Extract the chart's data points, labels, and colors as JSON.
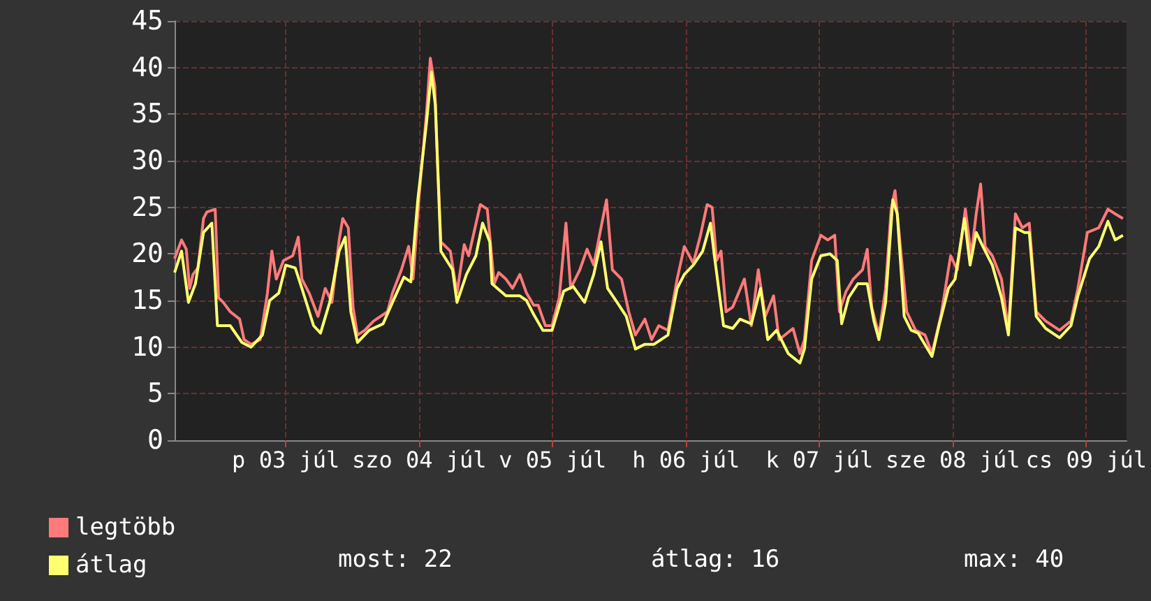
{
  "chart_data": {
    "type": "line",
    "xlim": [
      "--07-02T16:00",
      "--07-09T19:15"
    ],
    "xticks": [
      {
        "value": "--07-03T12:00",
        "label": "p 03 júl"
      },
      {
        "value": "--07-04T12:00",
        "label": "szo 04 júl"
      },
      {
        "value": "--07-05T12:00",
        "label": "v 05 júl"
      },
      {
        "value": "--07-06T12:00",
        "label": "h 06 júl"
      },
      {
        "value": "--07-07T12:00",
        "label": "k 07 júl"
      },
      {
        "value": "--07-08T12:00",
        "label": "sze 08 júl"
      },
      {
        "value": "--07-09T12:00",
        "label": "cs 09 júl"
      }
    ],
    "ylim": [
      0,
      45
    ],
    "yticks": [
      0,
      5,
      10,
      15,
      20,
      25,
      30,
      35,
      40,
      45
    ],
    "grid": true,
    "legend": "bottom left",
    "marker": "none",
    "line_style": "solid",
    "annotations": [
      "most: 22",
      "átlag: 16",
      "max: 40"
    ],
    "series": [
      {
        "name": "legtöbb",
        "color": "#ff7a7a",
        "x": [
          "--07-02T16:00",
          "--07-02T17:15",
          "--07-02T18:06",
          "--07-02T18:42",
          "--07-02T19:18",
          "--07-02T20:12",
          "--07-02T21:12",
          "--07-02T21:48",
          "--07-02T23:18",
          "--07-02T23:54",
          "--07-03T00:45",
          "--07-03T02:00",
          "--07-03T03:42",
          "--07-03T04:30",
          "--07-03T05:45",
          "--07-03T07:24",
          "--07-03T08:42",
          "--07-03T09:30",
          "--07-03T10:18",
          "--07-03T11:36",
          "--07-03T13:15",
          "--07-03T14:15",
          "--07-03T14:54",
          "--07-03T16:12",
          "--07-03T17:48",
          "--07-03T19:06",
          "--07-03T20:18",
          "--07-03T21:36",
          "--07-03T22:15",
          "--07-03T23:15",
          "--07-04T00:06",
          "--07-04T00:54",
          "--07-04T02:12",
          "--07-04T03:48",
          "--07-04T06:18",
          "--07-04T07:12",
          "--07-04T08:48",
          "--07-04T10:06",
          "--07-04T10:54",
          "--07-04T12:00",
          "--07-04T13:18",
          "--07-04T14:00",
          "--07-04T14:48",
          "--07-04T15:18",
          "--07-04T15:54",
          "--07-04T17:36",
          "--07-04T18:48",
          "--07-04T20:06",
          "--07-04T20:54",
          "--07-04T23:00",
          "--07-05T00:15",
          "--07-05T01:30",
          "--07-05T02:18",
          "--07-05T03:36",
          "--07-05T04:48",
          "--07-05T06:06",
          "--07-05T07:18",
          "--07-05T08:36",
          "--07-05T09:24",
          "--07-05T10:42",
          "--07-05T11:54",
          "--07-05T13:12",
          "--07-05T14:24",
          "--07-05T15:15",
          "--07-05T16:54",
          "--07-05T18:12",
          "--07-05T19:24",
          "--07-05T20:42",
          "--07-05T21:42",
          "--07-05T22:45",
          "--07-06T00:24",
          "--07-06T01:42",
          "--07-06T02:54",
          "--07-06T04:36",
          "--07-06T05:48",
          "--07-06T07:06",
          "--07-06T08:45",
          "--07-06T10:24",
          "--07-06T11:42",
          "--07-06T13:18",
          "--07-06T14:36",
          "--07-06T15:48",
          "--07-06T16:42",
          "--07-06T17:30",
          "--07-06T18:18",
          "--07-06T19:12",
          "--07-06T20:24",
          "--07-06T22:30",
          "--07-06T23:45",
          "--07-07T01:00",
          "--07-07T02:15",
          "--07-07T03:45",
          "--07-07T04:45",
          "--07-07T07:15",
          "--07-07T08:30",
          "--07-07T09:18",
          "--07-07T10:36",
          "--07-07T12:15",
          "--07-07T13:30",
          "--07-07T14:45",
          "--07-07T15:36",
          "--07-07T16:48",
          "--07-07T18:06",
          "--07-07T19:45",
          "--07-07T20:36",
          "--07-07T21:24",
          "--07-07T22:42",
          "--07-07T23:54",
          "--07-08T00:54",
          "--07-08T01:36",
          "--07-08T02:48",
          "--07-08T03:42",
          "--07-08T05:18",
          "--07-08T07:00",
          "--07-08T08:15",
          "--07-08T09:54",
          "--07-08T11:36",
          "--07-08T12:48",
          "--07-08T14:15",
          "--07-08T15:18",
          "--07-08T16:12",
          "--07-08T17:00",
          "--07-08T17:48",
          "--07-08T19:06",
          "--07-08T20:45",
          "--07-08T22:00",
          "--07-08T23:15",
          "--07-09T00:30",
          "--07-09T01:45",
          "--07-09T03:00",
          "--07-09T04:42",
          "--07-09T07:12",
          "--07-09T09:15",
          "--07-09T10:30",
          "--07-09T12:12",
          "--07-09T14:15",
          "--07-09T15:54",
          "--07-09T17:12",
          "--07-09T18:36"
        ],
        "values": [
          19.5,
          21.5,
          20.5,
          16.3,
          17.8,
          18.5,
          23.8,
          24.5,
          24.8,
          15.3,
          14.8,
          13.8,
          13,
          10.8,
          10.3,
          10.8,
          15.8,
          20.3,
          17.3,
          19.3,
          19.8,
          21.8,
          17.3,
          15.8,
          13.3,
          16.3,
          14.8,
          21.5,
          23.8,
          22.8,
          14.3,
          11.3,
          11.8,
          12.8,
          13.8,
          15.8,
          18.3,
          20.8,
          17.3,
          26.3,
          35,
          41,
          38,
          30,
          21.3,
          20.3,
          15.8,
          21,
          19.8,
          25.3,
          24.8,
          16.8,
          18,
          17.3,
          16.3,
          17.8,
          15.8,
          14.5,
          14.5,
          12.3,
          12.3,
          15.3,
          23.3,
          16.3,
          18.3,
          20.5,
          18.8,
          22.8,
          25.8,
          18.3,
          17.3,
          13.8,
          11.3,
          13,
          10.8,
          12.3,
          11.8,
          17.3,
          20.8,
          19,
          22,
          25.3,
          25,
          19.3,
          20.3,
          13.8,
          14.3,
          17.3,
          12.3,
          18.3,
          13.3,
          15.5,
          10.8,
          12,
          9.3,
          10.8,
          19.3,
          22,
          21.5,
          22,
          13.8,
          16,
          17.3,
          18.3,
          20.5,
          14.3,
          11.3,
          16.3,
          24.8,
          26.8,
          19.3,
          13.8,
          11.8,
          11.3,
          9.3,
          13.5,
          19.8,
          18.3,
          24.8,
          19.8,
          24.3,
          27.5,
          20.8,
          19.8,
          17.3,
          11.8,
          24.3,
          22.8,
          23.3,
          13.8,
          12.8,
          11.8,
          12.8,
          16.3,
          22.3,
          22.8,
          24.8,
          24.3,
          23.8
        ]
      },
      {
        "name": "átlag",
        "color": "#ffff70",
        "x": [
          "--07-02T16:00",
          "--07-02T17:15",
          "--07-02T18:30",
          "--07-02T19:45",
          "--07-02T21:12",
          "--07-02T22:42",
          "--07-02T23:42",
          "--07-03T02:00",
          "--07-03T04:06",
          "--07-03T05:45",
          "--07-03T07:48",
          "--07-03T09:06",
          "--07-03T10:45",
          "--07-03T12:00",
          "--07-03T13:42",
          "--07-03T14:54",
          "--07-03T17:00",
          "--07-03T18:15",
          "--07-03T19:54",
          "--07-03T21:36",
          "--07-03T22:42",
          "--07-03T23:42",
          "--07-04T00:54",
          "--07-04T03:00",
          "--07-04T05:30",
          "--07-04T07:12",
          "--07-04T09:15",
          "--07-04T10:30",
          "--07-04T11:45",
          "--07-04T13:18",
          "--07-04T14:12",
          "--07-04T14:54",
          "--07-04T15:54",
          "--07-04T18:00",
          "--07-04T18:48",
          "--07-04T20:30",
          "--07-04T22:12",
          "--07-04T23:24",
          "--07-05T00:42",
          "--07-05T01:06",
          "--07-05T03:36",
          "--07-05T06:06",
          "--07-05T07:18",
          "--07-05T08:36",
          "--07-05T10:15",
          "--07-05T11:54",
          "--07-05T14:00",
          "--07-05T15:42",
          "--07-05T17:45",
          "--07-05T19:24",
          "--07-05T20:42",
          "--07-05T21:54",
          "--07-05T23:36",
          "--07-06T01:15",
          "--07-06T02:54",
          "--07-06T04:36",
          "--07-06T06:15",
          "--07-06T08:45",
          "--07-06T10:24",
          "--07-06T11:42",
          "--07-06T13:18",
          "--07-06T15:00",
          "--07-06T16:24",
          "--07-06T17:06",
          "--07-06T18:45",
          "--07-06T20:24",
          "--07-06T21:42",
          "--07-06T23:45",
          "--07-07T01:24",
          "--07-07T02:42",
          "--07-07T04:18",
          "--07-07T06:24",
          "--07-07T08:30",
          "--07-07T09:18",
          "--07-07T10:36",
          "--07-07T12:15",
          "--07-07T13:54",
          "--07-07T15:12",
          "--07-07T16:00",
          "--07-07T17:15",
          "--07-07T18:54",
          "--07-07T20:36",
          "--07-07T21:48",
          "--07-07T22:42",
          "--07-07T23:54",
          "--07-08T01:12",
          "--07-08T02:00",
          "--07-08T03:15",
          "--07-08T04:30",
          "--07-08T05:45",
          "--07-08T08:15",
          "--07-08T09:30",
          "--07-08T11:12",
          "--07-08T12:24",
          "--07-08T14:06",
          "--07-08T15:06",
          "--07-08T16:12",
          "--07-08T17:24",
          "--07-08T19:06",
          "--07-08T20:45",
          "--07-08T22:00",
          "--07-08T23:15",
          "--07-09T00:54",
          "--07-09T01:45",
          "--07-09T03:00",
          "--07-09T04:42",
          "--07-09T07:12",
          "--07-09T09:15",
          "--07-09T10:30",
          "--07-09T12:36",
          "--07-09T14:15",
          "--07-09T15:54",
          "--07-09T17:12",
          "--07-09T18:36"
        ],
        "values": [
          18,
          20.3,
          14.8,
          16.8,
          22.3,
          23.3,
          12.3,
          12.3,
          10.5,
          10,
          11.3,
          15,
          15.8,
          18.8,
          18.5,
          16.3,
          12.3,
          11.5,
          14.8,
          20.3,
          21.8,
          13.8,
          10.5,
          11.8,
          12.5,
          14.8,
          17.5,
          17,
          25.8,
          34,
          39.5,
          36,
          20.3,
          18.3,
          14.8,
          17.8,
          19.8,
          23.3,
          21.3,
          16.8,
          15.5,
          15.5,
          15,
          13.5,
          11.8,
          11.8,
          16,
          16.5,
          14.8,
          17.8,
          21.3,
          16.3,
          14.8,
          13.3,
          9.8,
          10.3,
          10.3,
          11.3,
          16.3,
          17.8,
          18.8,
          20.3,
          23.3,
          19.8,
          12.3,
          12,
          13,
          12.5,
          16.3,
          10.8,
          11.8,
          9.3,
          8.3,
          9.8,
          17.3,
          19.8,
          20,
          19.3,
          12.5,
          15.3,
          16.8,
          16.8,
          12.8,
          10.8,
          14.8,
          25.8,
          24.3,
          13.3,
          11.8,
          11.5,
          9,
          12.3,
          16.3,
          17.3,
          23.8,
          18.8,
          22.3,
          20.8,
          18.8,
          15.3,
          11.3,
          22.8,
          22.3,
          22.3,
          13.3,
          12,
          11,
          12.3,
          15.5,
          19.5,
          20.8,
          23.5,
          21.5,
          22
        ]
      }
    ]
  }
}
